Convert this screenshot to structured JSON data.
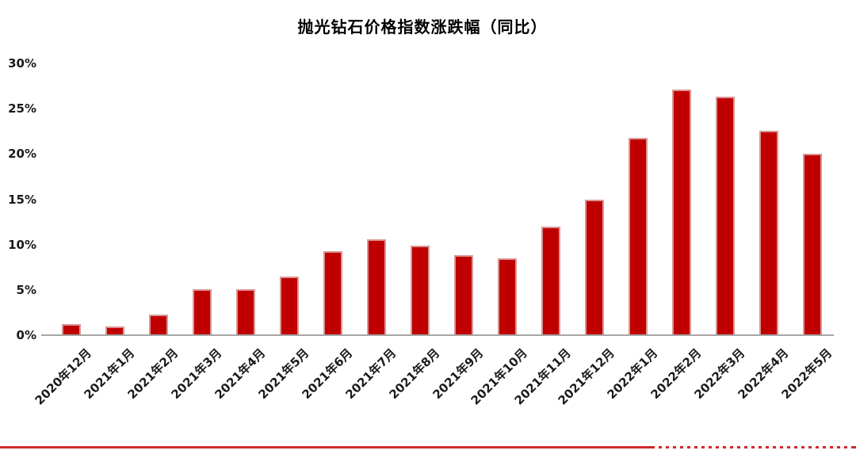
{
  "title": "抛光钻石价格指数涨跌幅（同比）",
  "colors": {
    "bar_fill": "#c00000",
    "bar_border": "#d99694",
    "axis_line": "#a6a6a6",
    "bottom_rule": "#cf2b2b",
    "text": "#1a1a1a"
  },
  "chart_data": {
    "type": "bar",
    "title": "抛光钻石价格指数涨跌幅（同比）",
    "categories": [
      "2020年12月",
      "2021年1月",
      "2021年2月",
      "2021年3月",
      "2021年4月",
      "2021年5月",
      "2021年6月",
      "2021年7月",
      "2021年8月",
      "2021年9月",
      "2021年10月",
      "2021年11月",
      "2021年12月",
      "2022年1月",
      "2022年2月",
      "2022年3月",
      "2022年4月",
      "2022年5月"
    ],
    "values": [
      1.2,
      1.0,
      2.3,
      5.1,
      5.1,
      6.5,
      9.3,
      10.6,
      9.9,
      8.8,
      8.5,
      12.0,
      15.0,
      21.8,
      27.1,
      26.3,
      22.6,
      20.0
    ],
    "unit": "%",
    "xlabel": "",
    "ylabel": "",
    "ylim": [
      0,
      30
    ],
    "yticks": [
      0,
      5,
      10,
      15,
      20,
      25,
      30
    ],
    "ytick_labels": [
      "0%",
      "5%",
      "10%",
      "15%",
      "20%",
      "25%",
      "30%"
    ],
    "grid": false,
    "legend_position": "none"
  }
}
